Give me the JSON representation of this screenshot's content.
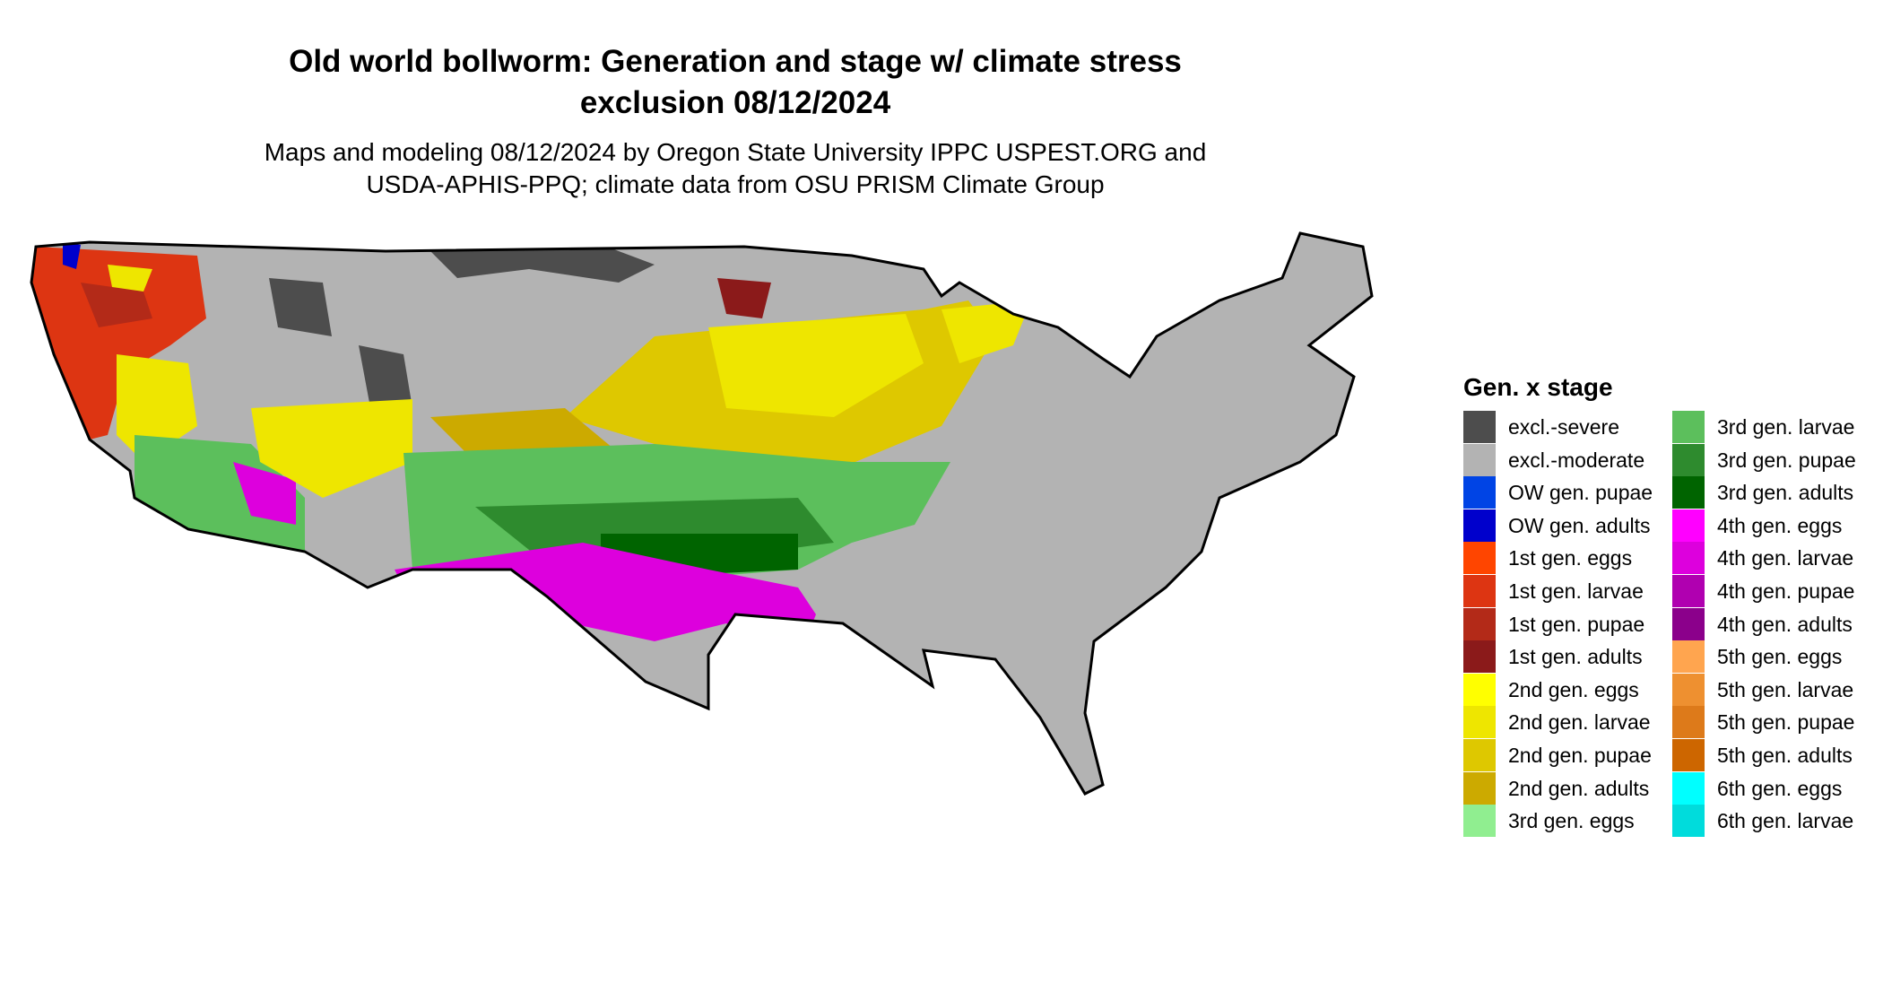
{
  "title_lines": [
    "Old world bollworm: Generation and stage w/ climate stress",
    "exclusion 08/12/2024"
  ],
  "subtitle_lines": [
    "Maps and modeling 08/12/2024 by Oregon State University IPPC USPEST.ORG and",
    "USDA-APHIS-PPQ; climate data from OSU PRISM Climate Group"
  ],
  "legend": {
    "title": "Gen. x stage",
    "columns": [
      [
        {
          "label": "excl.-severe",
          "color": "#4d4d4d"
        },
        {
          "label": "excl.-moderate",
          "color": "#b3b3b3"
        },
        {
          "label": "OW gen. pupae",
          "color": "#0044e5"
        },
        {
          "label": "OW gen. adults",
          "color": "#0000cc"
        },
        {
          "label": "1st gen. eggs",
          "color": "#ff4500"
        },
        {
          "label": "1st gen. larvae",
          "color": "#dd3512"
        },
        {
          "label": "1st gen. pupae",
          "color": "#b32a18"
        },
        {
          "label": "1st gen. adults",
          "color": "#8b1a1a"
        },
        {
          "label": "2nd gen. eggs",
          "color": "#ffff00"
        },
        {
          "label": "2nd gen. larvae",
          "color": "#eee600"
        },
        {
          "label": "2nd gen. pupae",
          "color": "#dec800"
        },
        {
          "label": "2nd gen. adults",
          "color": "#ccaa00"
        },
        {
          "label": "3rd gen. eggs",
          "color": "#90ee90"
        }
      ],
      [
        {
          "label": "3rd gen. larvae",
          "color": "#5cbf5c"
        },
        {
          "label": "3rd gen. pupae",
          "color": "#2e8b2e"
        },
        {
          "label": "3rd gen. adults",
          "color": "#006400"
        },
        {
          "label": "4th gen. eggs",
          "color": "#ff00ff"
        },
        {
          "label": "4th gen. larvae",
          "color": "#dd00dd"
        },
        {
          "label": "4th gen. pupae",
          "color": "#b000b0"
        },
        {
          "label": "4th gen. adults",
          "color": "#8b008b"
        },
        {
          "label": "5th gen. eggs",
          "color": "#ffa54f"
        },
        {
          "label": "5th gen. larvae",
          "color": "#ee9030"
        },
        {
          "label": "5th gen. pupae",
          "color": "#dd7a1a"
        },
        {
          "label": "5th gen. adults",
          "color": "#cd6600"
        },
        {
          "label": "6th gen. eggs",
          "color": "#00ffff"
        },
        {
          "label": "6th gen. larvae",
          "color": "#00dcdc"
        }
      ]
    ]
  }
}
